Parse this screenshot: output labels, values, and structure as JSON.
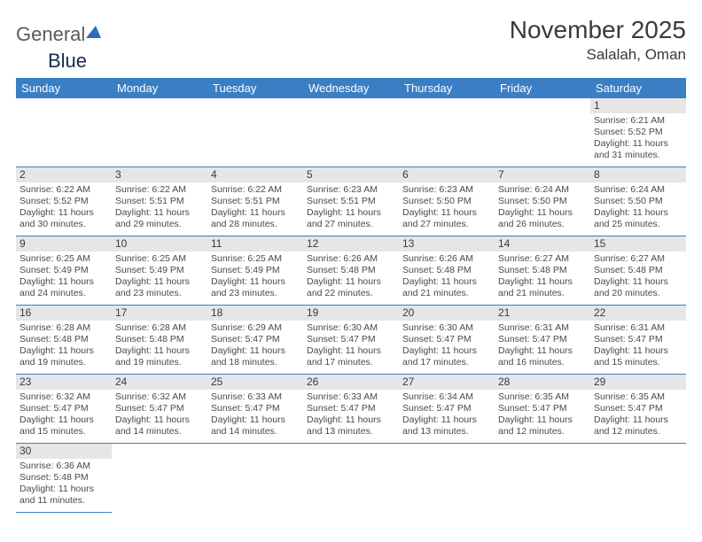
{
  "brand": {
    "part1": "General",
    "part2": "Blue"
  },
  "title": "November 2025",
  "location": "Salalah, Oman",
  "colors": {
    "header_bg": "#3a7fc4",
    "header_text": "#ffffff",
    "border": "#3a7fc4",
    "daynum_bg": "#e6e6e6",
    "text": "#4a4a4a",
    "brand_blue": "#2a6fb5"
  },
  "daysOfWeek": [
    "Sunday",
    "Monday",
    "Tuesday",
    "Wednesday",
    "Thursday",
    "Friday",
    "Saturday"
  ],
  "cells": [
    {
      "blank": true
    },
    {
      "blank": true
    },
    {
      "blank": true
    },
    {
      "blank": true
    },
    {
      "blank": true
    },
    {
      "blank": true
    },
    {
      "day": 1,
      "sunrise": "6:21 AM",
      "sunset": "5:52 PM",
      "daylight": "11 hours and 31 minutes."
    },
    {
      "day": 2,
      "sunrise": "6:22 AM",
      "sunset": "5:52 PM",
      "daylight": "11 hours and 30 minutes."
    },
    {
      "day": 3,
      "sunrise": "6:22 AM",
      "sunset": "5:51 PM",
      "daylight": "11 hours and 29 minutes."
    },
    {
      "day": 4,
      "sunrise": "6:22 AM",
      "sunset": "5:51 PM",
      "daylight": "11 hours and 28 minutes."
    },
    {
      "day": 5,
      "sunrise": "6:23 AM",
      "sunset": "5:51 PM",
      "daylight": "11 hours and 27 minutes."
    },
    {
      "day": 6,
      "sunrise": "6:23 AM",
      "sunset": "5:50 PM",
      "daylight": "11 hours and 27 minutes."
    },
    {
      "day": 7,
      "sunrise": "6:24 AM",
      "sunset": "5:50 PM",
      "daylight": "11 hours and 26 minutes."
    },
    {
      "day": 8,
      "sunrise": "6:24 AM",
      "sunset": "5:50 PM",
      "daylight": "11 hours and 25 minutes."
    },
    {
      "day": 9,
      "sunrise": "6:25 AM",
      "sunset": "5:49 PM",
      "daylight": "11 hours and 24 minutes."
    },
    {
      "day": 10,
      "sunrise": "6:25 AM",
      "sunset": "5:49 PM",
      "daylight": "11 hours and 23 minutes."
    },
    {
      "day": 11,
      "sunrise": "6:25 AM",
      "sunset": "5:49 PM",
      "daylight": "11 hours and 23 minutes."
    },
    {
      "day": 12,
      "sunrise": "6:26 AM",
      "sunset": "5:48 PM",
      "daylight": "11 hours and 22 minutes."
    },
    {
      "day": 13,
      "sunrise": "6:26 AM",
      "sunset": "5:48 PM",
      "daylight": "11 hours and 21 minutes."
    },
    {
      "day": 14,
      "sunrise": "6:27 AM",
      "sunset": "5:48 PM",
      "daylight": "11 hours and 21 minutes."
    },
    {
      "day": 15,
      "sunrise": "6:27 AM",
      "sunset": "5:48 PM",
      "daylight": "11 hours and 20 minutes."
    },
    {
      "day": 16,
      "sunrise": "6:28 AM",
      "sunset": "5:48 PM",
      "daylight": "11 hours and 19 minutes."
    },
    {
      "day": 17,
      "sunrise": "6:28 AM",
      "sunset": "5:48 PM",
      "daylight": "11 hours and 19 minutes."
    },
    {
      "day": 18,
      "sunrise": "6:29 AM",
      "sunset": "5:47 PM",
      "daylight": "11 hours and 18 minutes."
    },
    {
      "day": 19,
      "sunrise": "6:30 AM",
      "sunset": "5:47 PM",
      "daylight": "11 hours and 17 minutes."
    },
    {
      "day": 20,
      "sunrise": "6:30 AM",
      "sunset": "5:47 PM",
      "daylight": "11 hours and 17 minutes."
    },
    {
      "day": 21,
      "sunrise": "6:31 AM",
      "sunset": "5:47 PM",
      "daylight": "11 hours and 16 minutes."
    },
    {
      "day": 22,
      "sunrise": "6:31 AM",
      "sunset": "5:47 PM",
      "daylight": "11 hours and 15 minutes."
    },
    {
      "day": 23,
      "sunrise": "6:32 AM",
      "sunset": "5:47 PM",
      "daylight": "11 hours and 15 minutes."
    },
    {
      "day": 24,
      "sunrise": "6:32 AM",
      "sunset": "5:47 PM",
      "daylight": "11 hours and 14 minutes."
    },
    {
      "day": 25,
      "sunrise": "6:33 AM",
      "sunset": "5:47 PM",
      "daylight": "11 hours and 14 minutes."
    },
    {
      "day": 26,
      "sunrise": "6:33 AM",
      "sunset": "5:47 PM",
      "daylight": "11 hours and 13 minutes."
    },
    {
      "day": 27,
      "sunrise": "6:34 AM",
      "sunset": "5:47 PM",
      "daylight": "11 hours and 13 minutes."
    },
    {
      "day": 28,
      "sunrise": "6:35 AM",
      "sunset": "5:47 PM",
      "daylight": "11 hours and 12 minutes."
    },
    {
      "day": 29,
      "sunrise": "6:35 AM",
      "sunset": "5:47 PM",
      "daylight": "11 hours and 12 minutes."
    },
    {
      "day": 30,
      "sunrise": "6:36 AM",
      "sunset": "5:48 PM",
      "daylight": "11 hours and 11 minutes."
    }
  ],
  "labels": {
    "sunrise": "Sunrise:",
    "sunset": "Sunset:",
    "daylight": "Daylight:"
  }
}
